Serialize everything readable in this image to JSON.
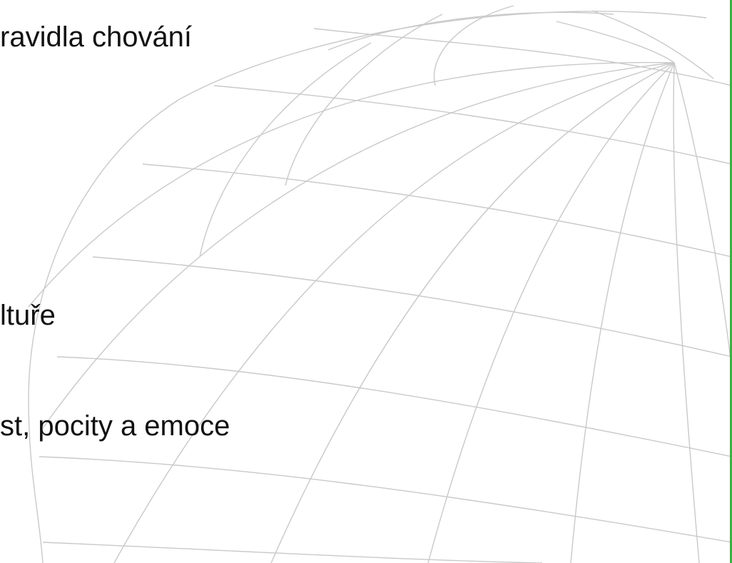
{
  "slide": {
    "lines": [
      "ravidla chování",
      "ltuře",
      "st, pocity a emoce"
    ]
  },
  "colors": {
    "background": "#ffffff",
    "text": "#111111",
    "globe_lines": "#c9c9c9",
    "edge_accent": "#3cb043"
  },
  "decoration": {
    "globe": "wireframe-globe-graphic"
  }
}
